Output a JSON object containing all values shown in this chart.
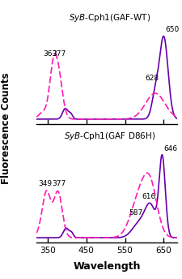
{
  "title_top": "SyB-Cph1(GAF-WT)",
  "title_bottom": "SyB-Cph1(GAF D86H)",
  "xlabel": "Wavelength",
  "ylabel": "Fluorescence Counts",
  "xlim": [
    322,
    685
  ],
  "xticks": [
    350,
    450,
    550,
    650
  ],
  "excitation_color": "#FF1AB3",
  "emission_color": "#6600AA",
  "background_color": "#FFFFFF"
}
